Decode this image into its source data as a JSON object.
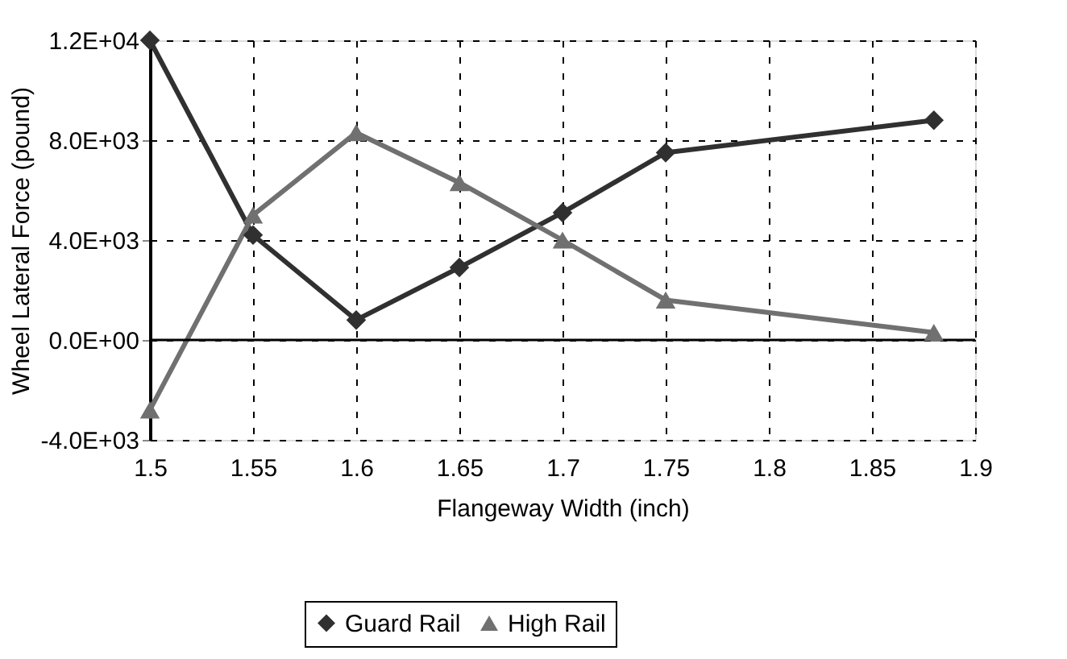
{
  "chart_data": {
    "type": "line",
    "xlabel": "Flangeway Width (inch)",
    "ylabel": "Wheel Lateral Force (pound)",
    "x": [
      1.5,
      1.55,
      1.6,
      1.65,
      1.7,
      1.75,
      1.88
    ],
    "series": [
      {
        "name": "Guard Rail",
        "color": "#303030",
        "marker": "diamond",
        "values": [
          12000,
          4200,
          800,
          2900,
          5100,
          7500,
          8800
        ]
      },
      {
        "name": "High Rail",
        "color": "#707070",
        "marker": "triangle",
        "values": [
          -2800,
          5000,
          8300,
          6300,
          4000,
          1600,
          300
        ]
      }
    ],
    "xlim": [
      1.5,
      1.9
    ],
    "xticks": [
      1.5,
      1.55,
      1.6,
      1.65,
      1.7,
      1.75,
      1.8,
      1.85,
      1.9
    ],
    "ylim": [
      -4000,
      12000
    ],
    "yticks": [
      {
        "value": -4000,
        "label": "-4.0E+03"
      },
      {
        "value": 0,
        "label": "0.0E+00"
      },
      {
        "value": 4000,
        "label": "4.0E+03"
      },
      {
        "value": 8000,
        "label": "8.0E+03"
      },
      {
        "value": 12000,
        "label": "1.2E+04"
      }
    ],
    "ref_lines": [
      {
        "axis": "y",
        "value": 0
      }
    ],
    "grid": true,
    "legend": "bottom",
    "line_style": "solid"
  }
}
